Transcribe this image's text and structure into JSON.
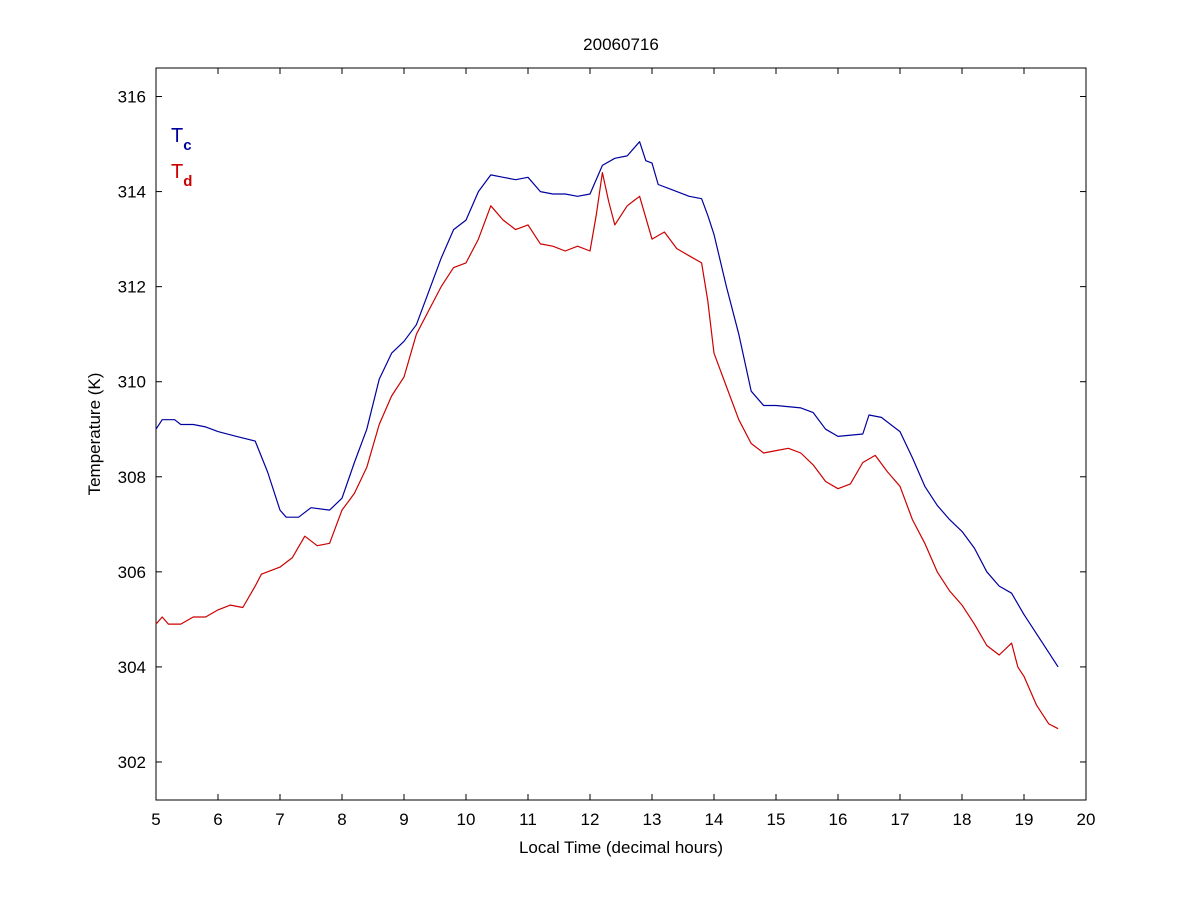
{
  "chart_data": {
    "type": "line",
    "title": "20060716",
    "xlabel": "Local Time (decimal hours)",
    "ylabel": "Temperature (K)",
    "xlim": [
      5,
      20
    ],
    "ylim": [
      301.2,
      316.6
    ],
    "xticks": [
      5,
      6,
      7,
      8,
      9,
      10,
      11,
      12,
      13,
      14,
      15,
      16,
      17,
      18,
      19,
      20
    ],
    "yticks": [
      302,
      304,
      306,
      308,
      310,
      312,
      314,
      316
    ],
    "grid": false,
    "legend": "top-left",
    "series": [
      {
        "name": "T",
        "subscript": "c",
        "color": "#0000a0",
        "points": [
          [
            5.0,
            309.0
          ],
          [
            5.1,
            309.2
          ],
          [
            5.3,
            309.2
          ],
          [
            5.4,
            309.1
          ],
          [
            5.6,
            309.1
          ],
          [
            5.8,
            309.05
          ],
          [
            6.0,
            308.95
          ],
          [
            6.3,
            308.85
          ],
          [
            6.6,
            308.75
          ],
          [
            6.8,
            308.1
          ],
          [
            7.0,
            307.3
          ],
          [
            7.1,
            307.15
          ],
          [
            7.3,
            307.15
          ],
          [
            7.5,
            307.35
          ],
          [
            7.8,
            307.3
          ],
          [
            8.0,
            307.55
          ],
          [
            8.2,
            308.3
          ],
          [
            8.4,
            309.0
          ],
          [
            8.6,
            310.05
          ],
          [
            8.8,
            310.6
          ],
          [
            9.0,
            310.85
          ],
          [
            9.2,
            311.2
          ],
          [
            9.4,
            311.9
          ],
          [
            9.6,
            312.6
          ],
          [
            9.8,
            313.2
          ],
          [
            10.0,
            313.4
          ],
          [
            10.2,
            314.0
          ],
          [
            10.4,
            314.35
          ],
          [
            10.6,
            314.3
          ],
          [
            10.8,
            314.25
          ],
          [
            11.0,
            314.3
          ],
          [
            11.2,
            314.0
          ],
          [
            11.4,
            313.95
          ],
          [
            11.6,
            313.95
          ],
          [
            11.8,
            313.9
          ],
          [
            12.0,
            313.95
          ],
          [
            12.2,
            314.55
          ],
          [
            12.4,
            314.7
          ],
          [
            12.6,
            314.75
          ],
          [
            12.8,
            315.05
          ],
          [
            12.9,
            314.65
          ],
          [
            13.0,
            314.6
          ],
          [
            13.1,
            314.15
          ],
          [
            13.3,
            314.05
          ],
          [
            13.6,
            313.9
          ],
          [
            13.8,
            313.85
          ],
          [
            13.9,
            313.5
          ],
          [
            14.0,
            313.1
          ],
          [
            14.2,
            312.0
          ],
          [
            14.4,
            311.0
          ],
          [
            14.6,
            309.8
          ],
          [
            14.8,
            309.5
          ],
          [
            15.0,
            309.5
          ],
          [
            15.4,
            309.45
          ],
          [
            15.6,
            309.35
          ],
          [
            15.8,
            309.0
          ],
          [
            16.0,
            308.85
          ],
          [
            16.4,
            308.9
          ],
          [
            16.5,
            309.3
          ],
          [
            16.7,
            309.25
          ],
          [
            17.0,
            308.95
          ],
          [
            17.2,
            308.4
          ],
          [
            17.4,
            307.8
          ],
          [
            17.6,
            307.4
          ],
          [
            17.8,
            307.1
          ],
          [
            18.0,
            306.85
          ],
          [
            18.2,
            306.5
          ],
          [
            18.4,
            306.0
          ],
          [
            18.6,
            305.7
          ],
          [
            18.8,
            305.55
          ],
          [
            19.0,
            305.1
          ],
          [
            19.2,
            304.7
          ],
          [
            19.4,
            304.3
          ],
          [
            19.55,
            304.0
          ]
        ]
      },
      {
        "name": "T",
        "subscript": "d",
        "color": "#cc0000",
        "points": [
          [
            5.0,
            304.9
          ],
          [
            5.1,
            305.05
          ],
          [
            5.2,
            304.9
          ],
          [
            5.4,
            304.9
          ],
          [
            5.6,
            305.05
          ],
          [
            5.8,
            305.05
          ],
          [
            6.0,
            305.2
          ],
          [
            6.2,
            305.3
          ],
          [
            6.4,
            305.25
          ],
          [
            6.6,
            305.7
          ],
          [
            6.7,
            305.95
          ],
          [
            7.0,
            306.1
          ],
          [
            7.2,
            306.3
          ],
          [
            7.4,
            306.75
          ],
          [
            7.6,
            306.55
          ],
          [
            7.8,
            306.6
          ],
          [
            8.0,
            307.3
          ],
          [
            8.2,
            307.65
          ],
          [
            8.4,
            308.2
          ],
          [
            8.6,
            309.1
          ],
          [
            8.8,
            309.7
          ],
          [
            9.0,
            310.1
          ],
          [
            9.2,
            311.0
          ],
          [
            9.4,
            311.5
          ],
          [
            9.6,
            312.0
          ],
          [
            9.8,
            312.4
          ],
          [
            10.0,
            312.5
          ],
          [
            10.2,
            313.0
          ],
          [
            10.4,
            313.7
          ],
          [
            10.6,
            313.4
          ],
          [
            10.8,
            313.2
          ],
          [
            11.0,
            313.3
          ],
          [
            11.2,
            312.9
          ],
          [
            11.4,
            312.85
          ],
          [
            11.6,
            312.75
          ],
          [
            11.8,
            312.85
          ],
          [
            12.0,
            312.75
          ],
          [
            12.1,
            313.5
          ],
          [
            12.2,
            314.4
          ],
          [
            12.3,
            313.8
          ],
          [
            12.4,
            313.3
          ],
          [
            12.6,
            313.7
          ],
          [
            12.8,
            313.9
          ],
          [
            13.0,
            313.0
          ],
          [
            13.2,
            313.15
          ],
          [
            13.4,
            312.8
          ],
          [
            13.6,
            312.65
          ],
          [
            13.8,
            312.5
          ],
          [
            13.9,
            311.7
          ],
          [
            14.0,
            310.6
          ],
          [
            14.2,
            309.9
          ],
          [
            14.4,
            309.2
          ],
          [
            14.6,
            308.7
          ],
          [
            14.8,
            308.5
          ],
          [
            15.0,
            308.55
          ],
          [
            15.2,
            308.6
          ],
          [
            15.4,
            308.5
          ],
          [
            15.6,
            308.25
          ],
          [
            15.8,
            307.9
          ],
          [
            16.0,
            307.75
          ],
          [
            16.2,
            307.85
          ],
          [
            16.4,
            308.3
          ],
          [
            16.6,
            308.45
          ],
          [
            16.8,
            308.1
          ],
          [
            17.0,
            307.8
          ],
          [
            17.2,
            307.1
          ],
          [
            17.4,
            306.6
          ],
          [
            17.6,
            306.0
          ],
          [
            17.8,
            305.6
          ],
          [
            18.0,
            305.3
          ],
          [
            18.2,
            304.9
          ],
          [
            18.4,
            304.45
          ],
          [
            18.6,
            304.25
          ],
          [
            18.8,
            304.5
          ],
          [
            18.9,
            304.0
          ],
          [
            19.0,
            303.8
          ],
          [
            19.2,
            303.2
          ],
          [
            19.4,
            302.8
          ],
          [
            19.55,
            302.7
          ]
        ]
      }
    ]
  }
}
